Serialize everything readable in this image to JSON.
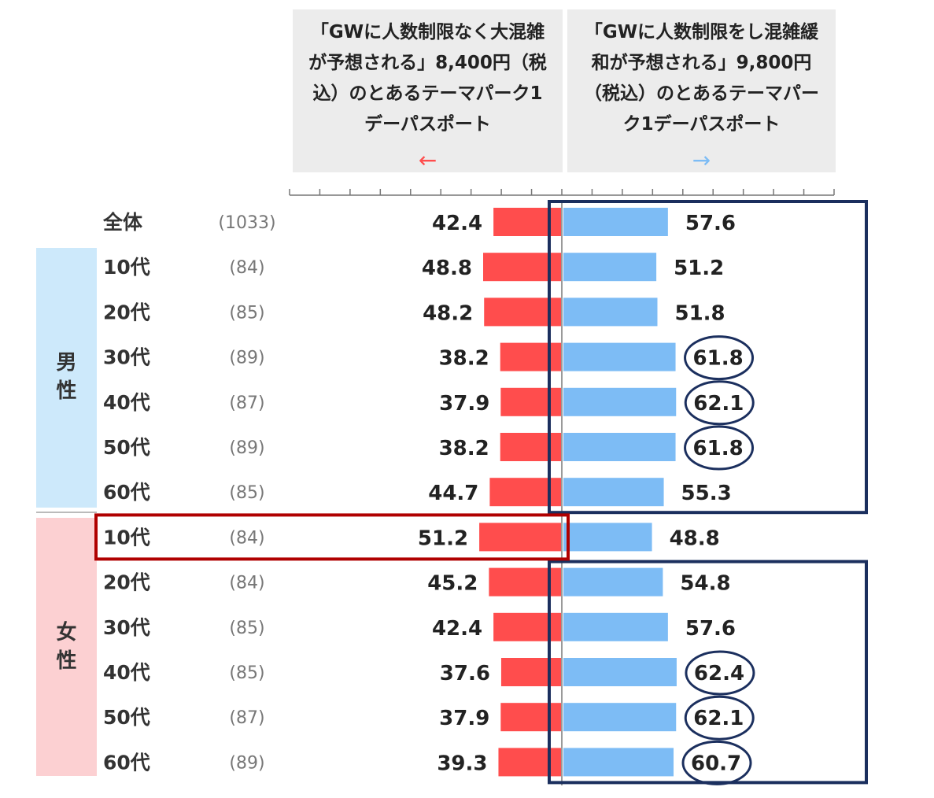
{
  "chart_data": {
    "type": "bar",
    "subtype": "diverging-horizontal",
    "left_header": "「GWに人数制限なく大混雑が予想される」8,400円（税込）のとあるテーマパーク1デーパスポート",
    "left_header_lines": [
      "「GWに人数制限なく大混雑",
      "が予想される」8,400円（税",
      "込）のとあるテーマパーク1",
      "デーパスポート"
    ],
    "left_arrow": "←",
    "right_header": "「GWに人数制限をし混雑緩和が予想される」9,800円（税込）のとあるテーマパーク1デーパスポート",
    "right_header_lines": [
      "「GWに人数制限をし混雑緩",
      "和が予想される」9,800円",
      "（税込）のとあるテーマパー",
      "ク1デーパスポート"
    ],
    "right_arrow": "→",
    "groups": [
      {
        "name": "男性",
        "chars": [
          "男",
          "性"
        ]
      },
      {
        "name": "女性",
        "chars": [
          "女",
          "性"
        ]
      }
    ],
    "categories": [
      {
        "label": "全体",
        "n": "(1033)",
        "group": ""
      },
      {
        "label": "10代",
        "n": "(84)",
        "group": "男性"
      },
      {
        "label": "20代",
        "n": "(85)",
        "group": "男性"
      },
      {
        "label": "30代",
        "n": "(89)",
        "group": "男性"
      },
      {
        "label": "40代",
        "n": "(87)",
        "group": "男性"
      },
      {
        "label": "50代",
        "n": "(89)",
        "group": "男性"
      },
      {
        "label": "60代",
        "n": "(85)",
        "group": "男性"
      },
      {
        "label": "10代",
        "n": "(84)",
        "group": "女性"
      },
      {
        "label": "20代",
        "n": "(84)",
        "group": "女性"
      },
      {
        "label": "30代",
        "n": "(85)",
        "group": "女性"
      },
      {
        "label": "40代",
        "n": "(85)",
        "group": "女性"
      },
      {
        "label": "50代",
        "n": "(87)",
        "group": "女性"
      },
      {
        "label": "60代",
        "n": "(89)",
        "group": "女性"
      }
    ],
    "series": [
      {
        "name": "left",
        "color": "#ff4d4d",
        "values": [
          42.4,
          48.8,
          48.2,
          38.2,
          37.9,
          38.2,
          44.7,
          51.2,
          45.2,
          42.4,
          37.6,
          37.9,
          39.3
        ]
      },
      {
        "name": "right",
        "color": "#7dbcf5",
        "values": [
          57.6,
          51.2,
          51.8,
          61.8,
          62.1,
          61.8,
          55.3,
          48.8,
          54.8,
          57.6,
          62.4,
          62.1,
          60.7
        ]
      }
    ],
    "value_labels_left": [
      "42.4",
      "48.8",
      "48.2",
      "38.2",
      "37.9",
      "38.2",
      "44.7",
      "51.2",
      "45.2",
      "42.4",
      "37.6",
      "37.9",
      "39.3"
    ],
    "value_labels_right": [
      "57.6",
      "51.2",
      "51.8",
      "61.8",
      "62.1",
      "61.8",
      "55.3",
      "48.8",
      "54.8",
      "57.6",
      "62.4",
      "62.1",
      "60.7"
    ],
    "axis_range": [
      0,
      100
    ],
    "axis_tick_step": 10,
    "highlight_circled_right": [
      3,
      4,
      5,
      10,
      11,
      12
    ],
    "highlight_box_left_rows": [
      7
    ],
    "highlight_box_right_rows": [
      [
        0,
        6
      ],
      [
        8,
        12
      ]
    ]
  },
  "colors": {
    "left_bar": "#ff4d4d",
    "right_bar": "#7dbcf5",
    "left_arrow": "#ff4d4d",
    "right_arrow": "#7dbcf5",
    "male_bg": "#cde9fb",
    "female_bg": "#fcd0d2",
    "navy": "#1b2f5e",
    "darkred": "#b00000"
  }
}
